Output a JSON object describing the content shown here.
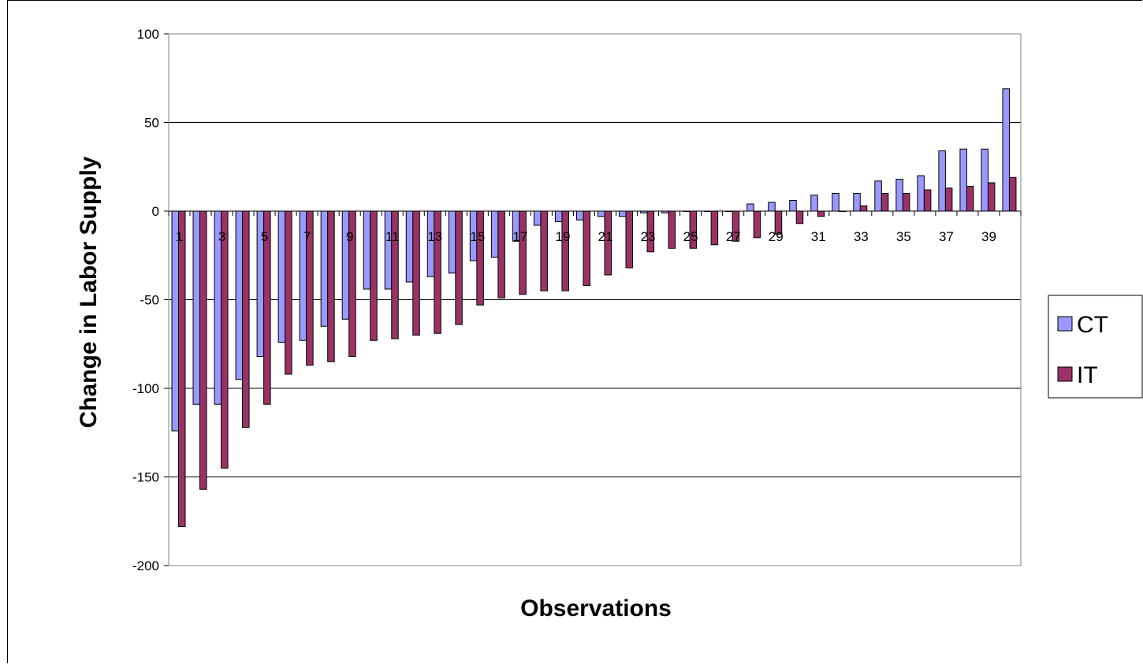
{
  "chart_data": {
    "type": "bar",
    "title": "",
    "xlabel": "Observations",
    "ylabel": "Change in Labor Supply",
    "ylim": [
      -200,
      100
    ],
    "yticks": [
      100,
      50,
      0,
      -50,
      -100,
      -150,
      -200
    ],
    "grid": true,
    "legend_position": "right",
    "categories": [
      "1",
      "2",
      "3",
      "4",
      "5",
      "6",
      "7",
      "8",
      "9",
      "10",
      "11",
      "12",
      "13",
      "14",
      "15",
      "16",
      "17",
      "18",
      "19",
      "20",
      "21",
      "22",
      "23",
      "24",
      "25",
      "26",
      "27",
      "28",
      "29",
      "30",
      "31",
      "32",
      "33",
      "34",
      "35",
      "36",
      "37",
      "38",
      "39",
      "40"
    ],
    "category_labels_shown": [
      "1",
      "3",
      "5",
      "7",
      "9",
      "11",
      "13",
      "15",
      "17",
      "19",
      "21",
      "23",
      "25",
      "27",
      "29",
      "31",
      "33",
      "35",
      "37",
      "39"
    ],
    "series": [
      {
        "name": "CT",
        "color": "#9999ff",
        "values": [
          -124,
          -109,
          -109,
          -95,
          -82,
          -74,
          -73,
          -65,
          -61,
          -44,
          -44,
          -40,
          -37,
          -35,
          -28,
          -26,
          -17,
          -8,
          -6,
          -5,
          -3,
          -3,
          -1,
          -1,
          0,
          0,
          0,
          4,
          5,
          6,
          9,
          10,
          10,
          17,
          18,
          20,
          34,
          35,
          35,
          69
        ]
      },
      {
        "name": "IT",
        "color": "#993366",
        "values": [
          -178,
          -157,
          -145,
          -122,
          -109,
          -92,
          -87,
          -85,
          -82,
          -73,
          -72,
          -70,
          -69,
          -64,
          -53,
          -49,
          -47,
          -45,
          -45,
          -42,
          -36,
          -32,
          -23,
          -21,
          -21,
          -19,
          -17,
          -15,
          -13,
          -7,
          -3,
          0,
          3,
          10,
          10,
          12,
          13,
          14,
          16,
          19
        ]
      }
    ]
  }
}
